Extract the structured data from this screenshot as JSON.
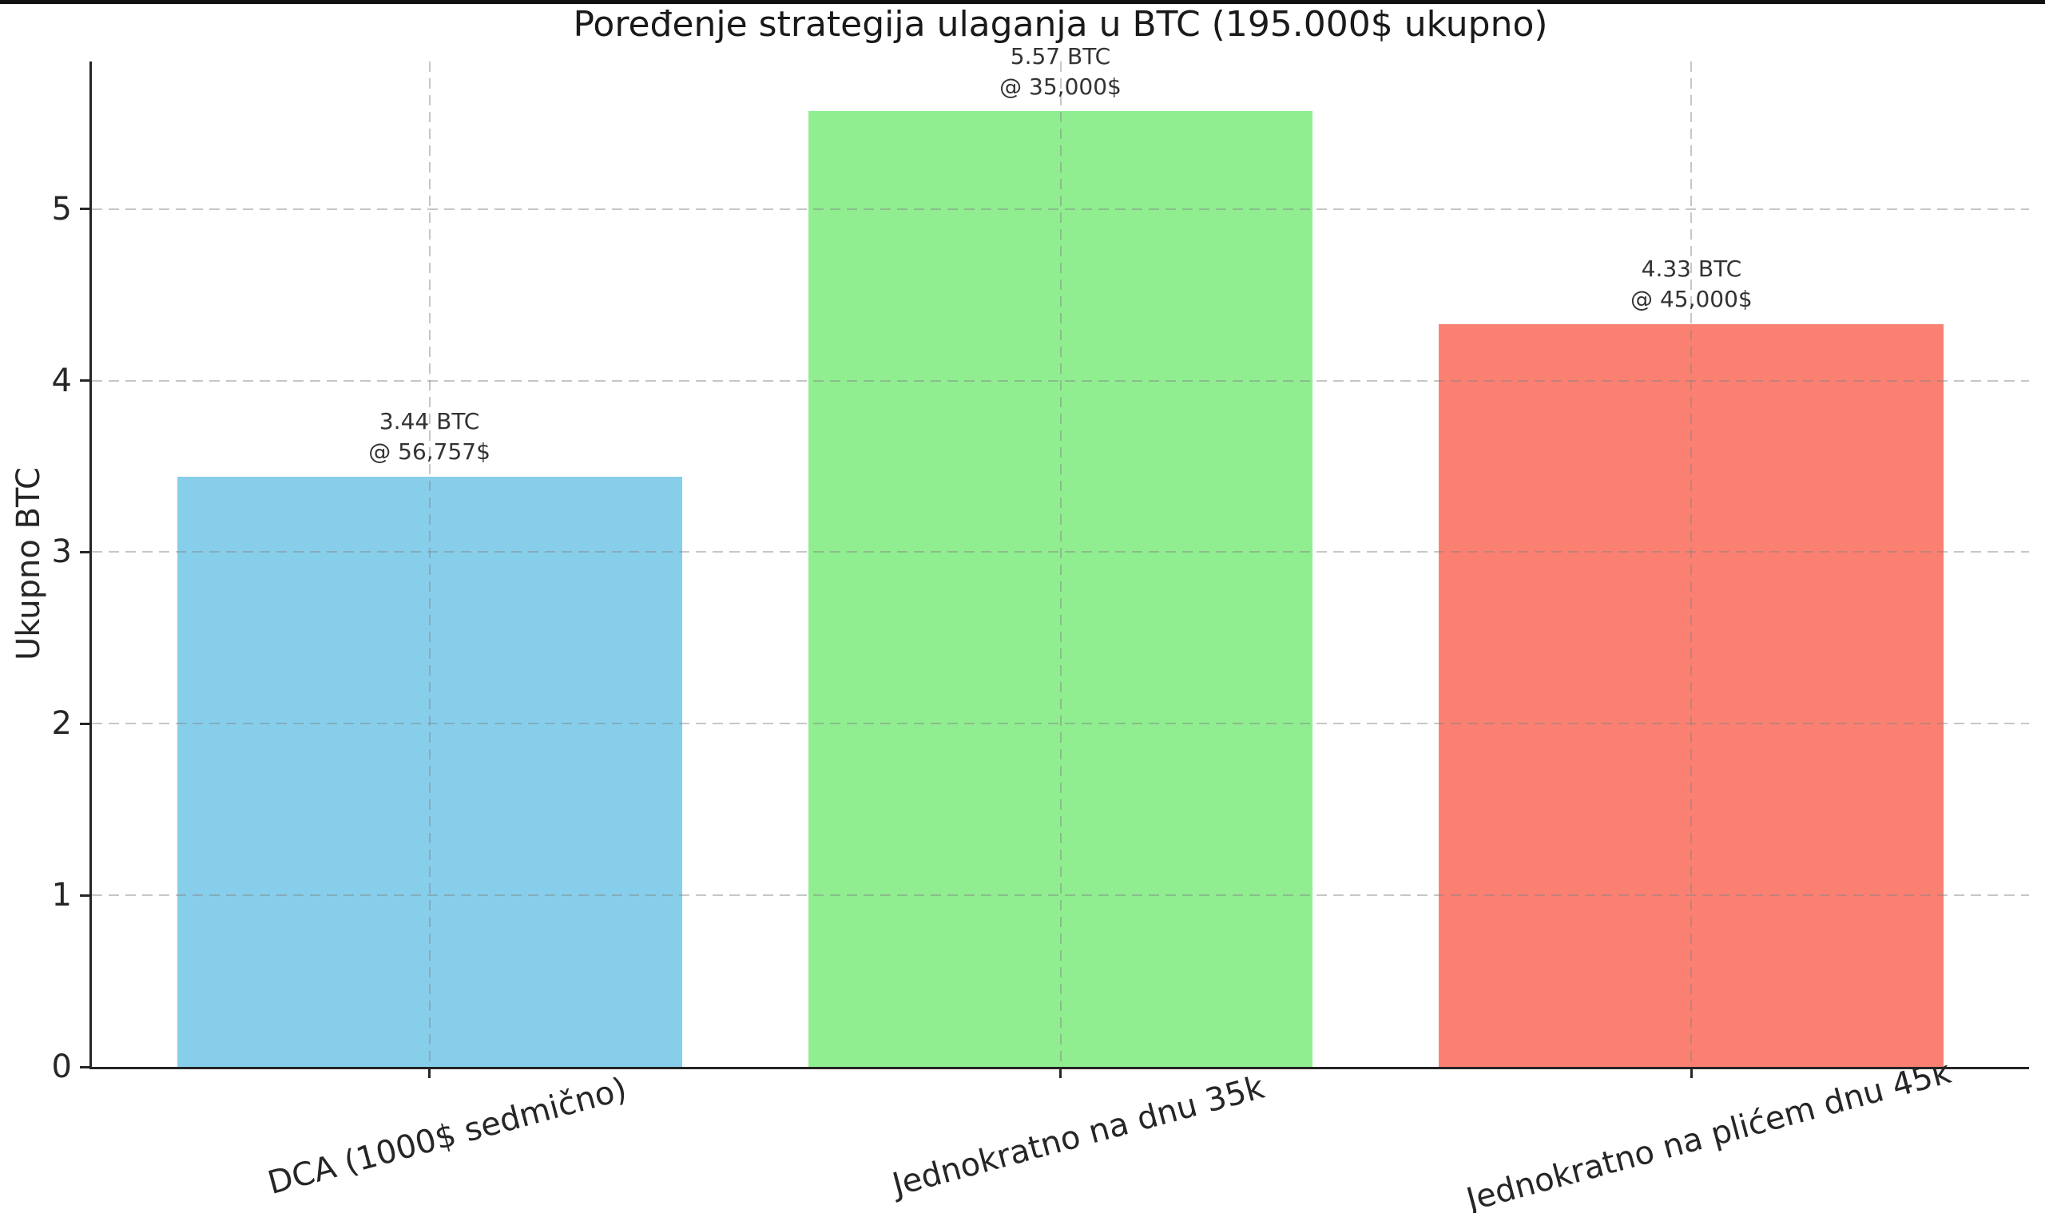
{
  "chart_data": {
    "type": "bar",
    "title": "Poređenje strategija ulaganja u BTC (195.000$ ukupno)",
    "ylabel": "Ukupno BTC",
    "xlabel": "",
    "categories": [
      "DCA (1000$ sedmično)",
      "Jednokratno na dnu 35k",
      "Jednokratno na plićem dnu 45k"
    ],
    "values": [
      3.44,
      5.57,
      4.33
    ],
    "bar_annotations": [
      [
        "3.44 BTC",
        "@ 56,757$"
      ],
      [
        "5.57 BTC",
        "@ 35,000$"
      ],
      [
        "4.33 BTC",
        "@ 45,000$"
      ]
    ],
    "bar_colors": [
      "#87CEEB",
      "#90EE90",
      "#FA8072"
    ],
    "yticks": [
      0,
      1,
      2,
      3,
      4,
      5
    ],
    "ylim": [
      0,
      5.86
    ],
    "xlim": [
      -0.535,
      2.535
    ],
    "bar_width": 0.8,
    "x_tick_rotation_deg": 15,
    "grid": "both, dashed, light-gray, drawn over bars",
    "legend": "none",
    "background": "#ffffff",
    "spine_color": "#262626"
  }
}
